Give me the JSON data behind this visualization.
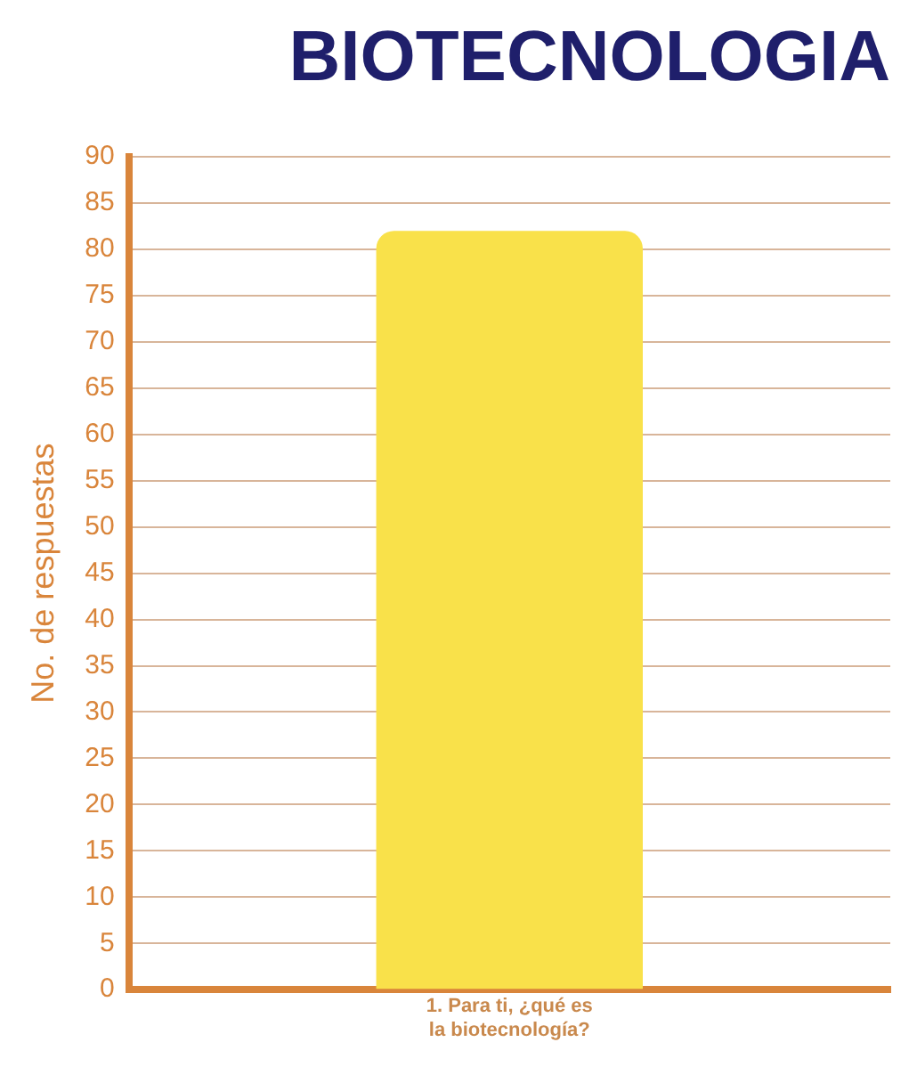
{
  "chart_data": {
    "type": "bar",
    "title": "BIOTECNOLOGIA",
    "ylabel": "No. de respuestas",
    "categories": [
      "1. Para ti, ¿qué es la biotecnología?"
    ],
    "values": [
      82
    ],
    "color": "#f9e14a",
    "ylim": [
      0,
      90
    ],
    "yticks": [
      0,
      5,
      10,
      15,
      20,
      25,
      30,
      35,
      40,
      45,
      50,
      55,
      60,
      65,
      70,
      75,
      80,
      85,
      90
    ],
    "grid": "y"
  }
}
